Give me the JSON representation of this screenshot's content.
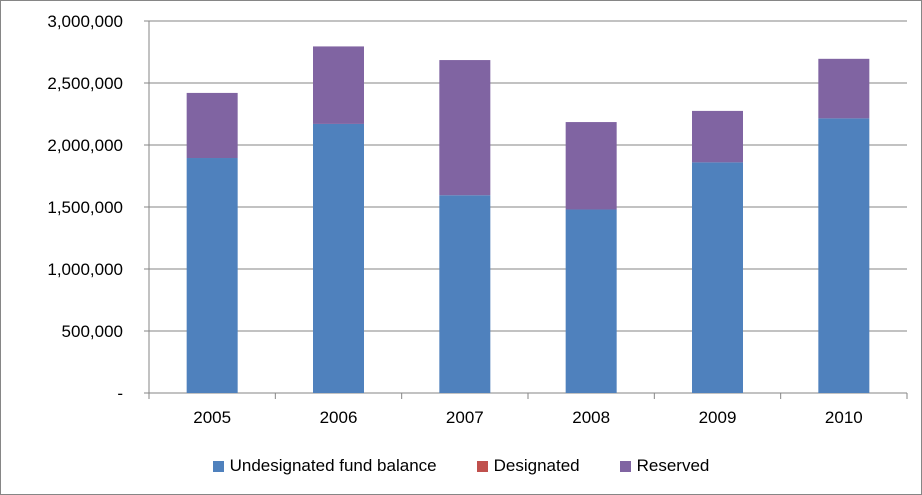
{
  "chart_data": {
    "type": "bar",
    "stacked": true,
    "categories": [
      "2005",
      "2006",
      "2007",
      "2008",
      "2009",
      "2010"
    ],
    "series": [
      {
        "name": "Undesignated fund balance",
        "color": "#4F81BD",
        "values": [
          1895000,
          2170000,
          1595000,
          1480000,
          1860000,
          2215000
        ]
      },
      {
        "name": "Designated",
        "color": "#C0504D",
        "values": [
          0,
          0,
          0,
          0,
          0,
          0
        ]
      },
      {
        "name": "Reserved",
        "color": "#8064A2",
        "values": [
          525000,
          625000,
          1090000,
          705000,
          415000,
          480000
        ]
      }
    ],
    "ylim": [
      0,
      3000000
    ],
    "yticks": [
      0,
      500000,
      1000000,
      1500000,
      2000000,
      2500000,
      3000000
    ],
    "ytick_labels": [
      "-",
      "500,000",
      "1,000,000",
      "1,500,000",
      "2,000,000",
      "2,500,000",
      "3,000,000"
    ],
    "grid": true,
    "legend_position": "bottom",
    "title": "",
    "xlabel": "",
    "ylabel": ""
  }
}
